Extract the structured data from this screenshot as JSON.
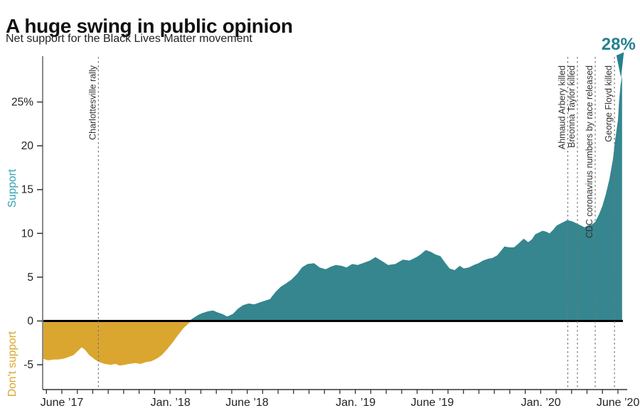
{
  "header": {
    "title": "A huge swing in public opinion",
    "subtitle": "Net support for the Black Lives Matter movement"
  },
  "chart_data": {
    "type": "area",
    "title": "A huge swing in public opinion",
    "subtitle": "Net support for the Black Lives Matter movement",
    "ylim": [
      -7.8,
      30.2
    ],
    "grid": false,
    "side_labels": {
      "positive": "Support",
      "negative": "Don’t support"
    },
    "y_ticks": [
      {
        "label": "25%",
        "value": 25
      },
      {
        "label": "20",
        "value": 20
      },
      {
        "label": "15",
        "value": 15
      },
      {
        "label": "10",
        "value": 10
      },
      {
        "label": "5",
        "value": 5
      },
      {
        "label": "0",
        "value": 0
      },
      {
        "label": "-5",
        "value": -5
      }
    ],
    "x_ticks": [
      {
        "label": "June ’17",
        "date": "2017-06-01"
      },
      {
        "label": "Jan. ’18",
        "date": "2018-01-01"
      },
      {
        "label": "June ’18",
        "date": "2018-06-01"
      },
      {
        "label": "Jan. ’19",
        "date": "2019-01-01"
      },
      {
        "label": "June ’19",
        "date": "2019-06-01"
      },
      {
        "label": "Jan. ’20",
        "date": "2020-01-01"
      },
      {
        "label": "June ’20",
        "date": "2020-06-01"
      }
    ],
    "events": [
      {
        "label": "Charlottesville rally",
        "date": "2017-08-12"
      },
      {
        "label": "Ahmaud Arbery killed",
        "date": "2020-02-23"
      },
      {
        "label": "Breonna Taylor killed",
        "date": "2020-03-13"
      },
      {
        "label": "CDC coronavirus numbers by race released",
        "date": "2020-04-17"
      },
      {
        "label": "George Floyd killed",
        "date": "2020-05-25"
      }
    ],
    "peak_annotation": {
      "label": "28%",
      "value": 28,
      "date": "2020-06-09"
    },
    "colors": {
      "support_area": "#35868F",
      "oppose_area": "#DAA62F",
      "support_label": "#35A2B4",
      "oppose_label": "#DAA62F",
      "peak": "#26818F",
      "event_line": "#777777",
      "event_text": "#333333",
      "axis": "#8A8A8A",
      "axis_dark": "#333333",
      "tick_text": "#222222",
      "zero_line": "#000000"
    },
    "series": [
      {
        "name": "Net support for Black Lives Matter",
        "points": [
          [
            "2017-04-24",
            -4.3
          ],
          [
            "2017-05-05",
            -4.5
          ],
          [
            "2017-05-15",
            -4.4
          ],
          [
            "2017-05-24",
            -4.4
          ],
          [
            "2017-06-05",
            -4.3
          ],
          [
            "2017-06-15",
            -4.1
          ],
          [
            "2017-06-24",
            -3.9
          ],
          [
            "2017-07-03",
            -3.4
          ],
          [
            "2017-07-10",
            -3.0
          ],
          [
            "2017-07-17",
            -3.3
          ],
          [
            "2017-07-25",
            -3.9
          ],
          [
            "2017-08-05",
            -4.4
          ],
          [
            "2017-08-14",
            -4.7
          ],
          [
            "2017-08-24",
            -4.9
          ],
          [
            "2017-09-05",
            -5.0
          ],
          [
            "2017-09-15",
            -4.9
          ],
          [
            "2017-09-23",
            -5.1
          ],
          [
            "2017-10-03",
            -5.0
          ],
          [
            "2017-10-12",
            -4.9
          ],
          [
            "2017-10-24",
            -4.8
          ],
          [
            "2017-11-03",
            -4.9
          ],
          [
            "2017-11-14",
            -4.7
          ],
          [
            "2017-11-24",
            -4.6
          ],
          [
            "2017-12-05",
            -4.3
          ],
          [
            "2017-12-15",
            -3.9
          ],
          [
            "2017-12-26",
            -3.2
          ],
          [
            "2018-01-06",
            -2.4
          ],
          [
            "2018-01-16",
            -1.6
          ],
          [
            "2018-01-27",
            -0.8
          ],
          [
            "2018-02-07",
            -0.2
          ],
          [
            "2018-02-14",
            0.3
          ],
          [
            "2018-02-25",
            0.7
          ],
          [
            "2018-03-05",
            0.9
          ],
          [
            "2018-03-16",
            1.1
          ],
          [
            "2018-03-26",
            1.2
          ],
          [
            "2018-04-03",
            1.0
          ],
          [
            "2018-04-13",
            0.8
          ],
          [
            "2018-04-23",
            0.5
          ],
          [
            "2018-05-04",
            0.8
          ],
          [
            "2018-05-14",
            1.4
          ],
          [
            "2018-05-24",
            1.8
          ],
          [
            "2018-06-04",
            2.0
          ],
          [
            "2018-06-15",
            1.9
          ],
          [
            "2018-06-25",
            2.1
          ],
          [
            "2018-07-05",
            2.3
          ],
          [
            "2018-07-16",
            2.5
          ],
          [
            "2018-07-27",
            3.3
          ],
          [
            "2018-08-06",
            3.9
          ],
          [
            "2018-08-17",
            4.3
          ],
          [
            "2018-08-27",
            4.7
          ],
          [
            "2018-09-08",
            5.4
          ],
          [
            "2018-09-17",
            6.1
          ],
          [
            "2018-09-28",
            6.5
          ],
          [
            "2018-10-11",
            6.6
          ],
          [
            "2018-10-22",
            6.1
          ],
          [
            "2018-11-03",
            5.9
          ],
          [
            "2018-11-13",
            6.2
          ],
          [
            "2018-11-23",
            6.4
          ],
          [
            "2018-12-04",
            6.3
          ],
          [
            "2018-12-14",
            6.1
          ],
          [
            "2018-12-25",
            6.5
          ],
          [
            "2019-01-05",
            6.4
          ],
          [
            "2019-01-15",
            6.6
          ],
          [
            "2019-01-29",
            6.9
          ],
          [
            "2019-02-09",
            7.3
          ],
          [
            "2019-02-23",
            6.8
          ],
          [
            "2019-03-06",
            6.4
          ],
          [
            "2019-03-20",
            6.5
          ],
          [
            "2019-04-04",
            7.0
          ],
          [
            "2019-04-17",
            6.9
          ],
          [
            "2019-05-01",
            7.3
          ],
          [
            "2019-05-09",
            7.6
          ],
          [
            "2019-05-19",
            8.1
          ],
          [
            "2019-05-29",
            7.9
          ],
          [
            "2019-06-07",
            7.6
          ],
          [
            "2019-06-17",
            7.4
          ],
          [
            "2019-06-27",
            6.6
          ],
          [
            "2019-07-05",
            6.0
          ],
          [
            "2019-07-15",
            5.8
          ],
          [
            "2019-07-25",
            6.3
          ],
          [
            "2019-08-02",
            6.0
          ],
          [
            "2019-08-12",
            6.1
          ],
          [
            "2019-08-22",
            6.4
          ],
          [
            "2019-08-31",
            6.6
          ],
          [
            "2019-09-09",
            6.9
          ],
          [
            "2019-09-19",
            7.1
          ],
          [
            "2019-09-28",
            7.2
          ],
          [
            "2019-10-07",
            7.5
          ],
          [
            "2019-10-17",
            8.2
          ],
          [
            "2019-10-21",
            8.5
          ],
          [
            "2019-11-01",
            8.4
          ],
          [
            "2019-11-09",
            8.4
          ],
          [
            "2019-11-19",
            8.9
          ],
          [
            "2019-11-28",
            9.4
          ],
          [
            "2019-12-07",
            9.0
          ],
          [
            "2019-12-14",
            9.3
          ],
          [
            "2019-12-21",
            9.9
          ],
          [
            "2019-12-28",
            10.1
          ],
          [
            "2020-01-04",
            10.3
          ],
          [
            "2020-01-11",
            10.2
          ],
          [
            "2020-01-18",
            10.0
          ],
          [
            "2020-01-25",
            10.4
          ],
          [
            "2020-02-01",
            10.9
          ],
          [
            "2020-02-11",
            11.2
          ],
          [
            "2020-02-22",
            11.5
          ],
          [
            "2020-03-02",
            11.4
          ],
          [
            "2020-03-13",
            11.1
          ],
          [
            "2020-03-20",
            10.9
          ],
          [
            "2020-03-27",
            10.7
          ],
          [
            "2020-04-03",
            10.9
          ],
          [
            "2020-04-10",
            11.0
          ],
          [
            "2020-04-17",
            11.3
          ],
          [
            "2020-04-24",
            12.1
          ],
          [
            "2020-05-01",
            13.1
          ],
          [
            "2020-05-08",
            14.5
          ],
          [
            "2020-05-15",
            16.2
          ],
          [
            "2020-05-22",
            18.5
          ],
          [
            "2020-05-26",
            20.5
          ],
          [
            "2020-06-01",
            23.0
          ],
          [
            "2020-06-03",
            25.0
          ],
          [
            "2020-06-06",
            27.0
          ],
          [
            "2020-06-09",
            28.0
          ]
        ]
      }
    ]
  }
}
